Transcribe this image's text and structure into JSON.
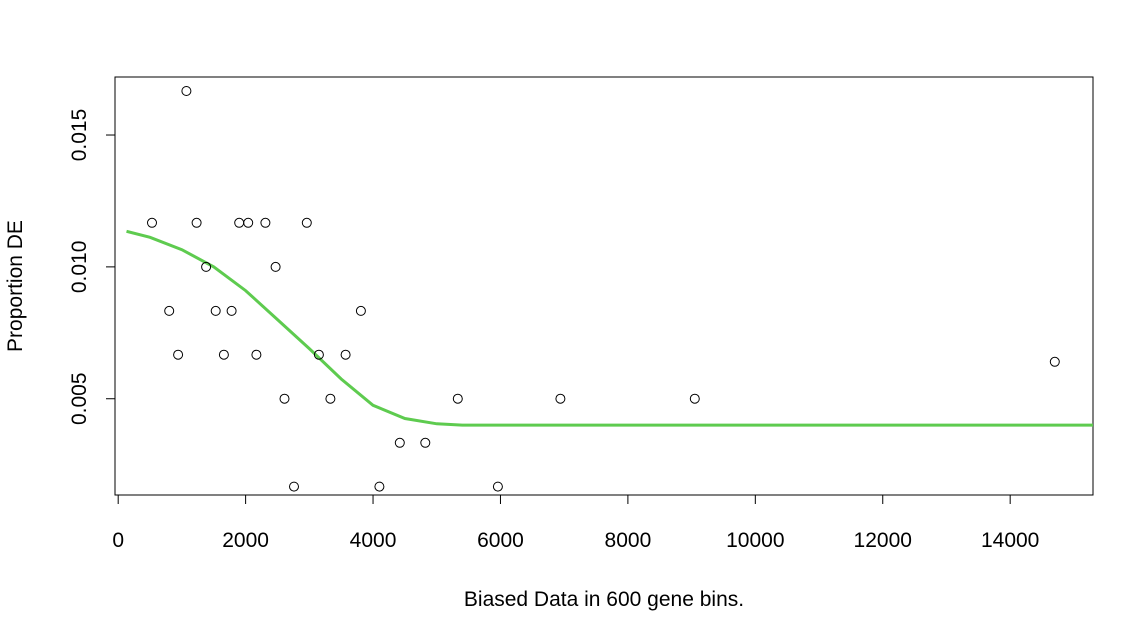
{
  "chart_data": {
    "type": "scatter",
    "title": "",
    "xlabel": "Biased Data in 600 gene bins.",
    "ylabel": "Proportion DE",
    "xlim": [
      -50,
      15300
    ],
    "ylim": [
      0.00135,
      0.0172
    ],
    "x_ticks": [
      0,
      2000,
      4000,
      6000,
      8000,
      10000,
      12000,
      14000
    ],
    "x_tick_labels": [
      "0",
      "2000",
      "4000",
      "6000",
      "8000",
      "10000",
      "12000",
      "14000"
    ],
    "y_ticks": [
      0.005,
      0.01,
      0.015
    ],
    "y_tick_labels": [
      "0.005",
      "0.010",
      "0.015"
    ],
    "grid": false,
    "fit_color": "#5ecb4f",
    "points": [
      {
        "x": 530,
        "y": 0.01167
      },
      {
        "x": 800,
        "y": 0.00833
      },
      {
        "x": 940,
        "y": 0.00667
      },
      {
        "x": 1070,
        "y": 0.01667
      },
      {
        "x": 1230,
        "y": 0.01167
      },
      {
        "x": 1380,
        "y": 0.01
      },
      {
        "x": 1530,
        "y": 0.00833
      },
      {
        "x": 1660,
        "y": 0.00667
      },
      {
        "x": 1780,
        "y": 0.00833
      },
      {
        "x": 1900,
        "y": 0.01167
      },
      {
        "x": 2040,
        "y": 0.01167
      },
      {
        "x": 2170,
        "y": 0.00667
      },
      {
        "x": 2310,
        "y": 0.01167
      },
      {
        "x": 2470,
        "y": 0.01
      },
      {
        "x": 2610,
        "y": 0.005
      },
      {
        "x": 2760,
        "y": 0.00167
      },
      {
        "x": 2960,
        "y": 0.01167
      },
      {
        "x": 3150,
        "y": 0.00667
      },
      {
        "x": 3330,
        "y": 0.005
      },
      {
        "x": 3570,
        "y": 0.00667
      },
      {
        "x": 3810,
        "y": 0.00833
      },
      {
        "x": 4100,
        "y": 0.00167
      },
      {
        "x": 4420,
        "y": 0.00333
      },
      {
        "x": 4820,
        "y": 0.00333
      },
      {
        "x": 5330,
        "y": 0.005
      },
      {
        "x": 5960,
        "y": 0.00167
      },
      {
        "x": 6940,
        "y": 0.005
      },
      {
        "x": 9050,
        "y": 0.005
      },
      {
        "x": 14700,
        "y": 0.0064
      }
    ],
    "fit_line": [
      {
        "x": 130,
        "y": 0.01135
      },
      {
        "x": 500,
        "y": 0.01112
      },
      {
        "x": 1000,
        "y": 0.01065
      },
      {
        "x": 1500,
        "y": 0.01
      },
      {
        "x": 2000,
        "y": 0.0091
      },
      {
        "x": 2500,
        "y": 0.008
      },
      {
        "x": 3000,
        "y": 0.0069
      },
      {
        "x": 3500,
        "y": 0.00575
      },
      {
        "x": 4000,
        "y": 0.00475
      },
      {
        "x": 4500,
        "y": 0.00425
      },
      {
        "x": 5000,
        "y": 0.00405
      },
      {
        "x": 5400,
        "y": 0.004
      },
      {
        "x": 8000,
        "y": 0.004
      },
      {
        "x": 12000,
        "y": 0.004
      },
      {
        "x": 15300,
        "y": 0.004
      }
    ]
  }
}
